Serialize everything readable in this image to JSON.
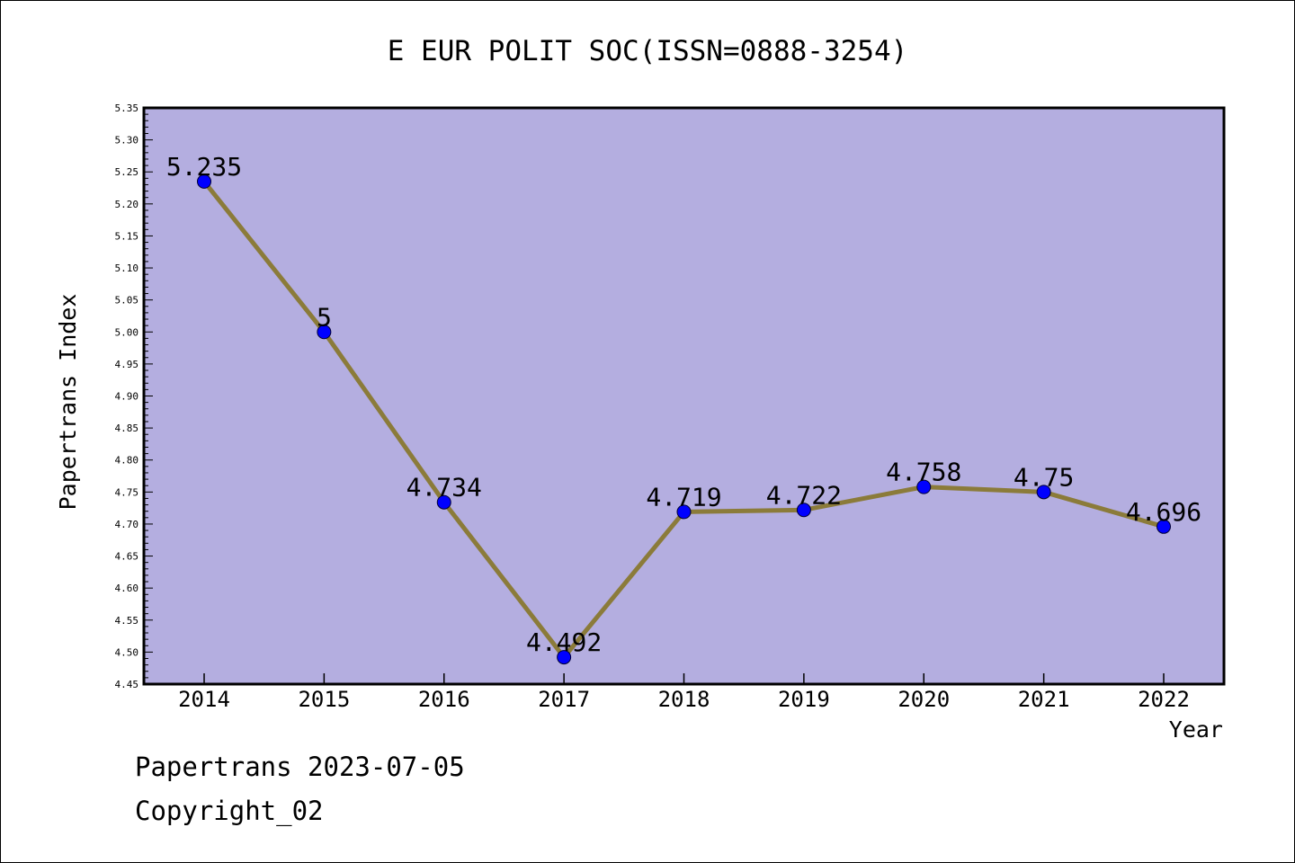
{
  "chart_data": {
    "type": "line",
    "title": "E EUR POLIT SOC(ISSN=0888-3254)",
    "xlabel": "Year",
    "ylabel": "Papertrans Index",
    "categories": [
      "2014",
      "2015",
      "2016",
      "2017",
      "2018",
      "2019",
      "2020",
      "2021",
      "2022"
    ],
    "series": [
      {
        "values": [
          5.235,
          5,
          4.734,
          4.492,
          4.719,
          4.722,
          4.758,
          4.75,
          4.696
        ],
        "labels": [
          "5.235",
          "5",
          "4.734",
          "4.492",
          "4.719",
          "4.722",
          "4.758",
          "4.75",
          "4.696"
        ]
      }
    ],
    "ylim": [
      4.45,
      5.35
    ],
    "ytick_labels": [
      "4.45",
      "4.50",
      "4.55",
      "4.60",
      "4.65",
      "4.70",
      "4.75",
      "4.80",
      "4.85",
      "4.90",
      "4.95",
      "5.00",
      "5.05",
      "5.10",
      "5.15",
      "5.20",
      "5.25",
      "5.30",
      "5.35"
    ],
    "grid": false,
    "colors": {
      "plot_background": "#b4aee0",
      "line": "#8b7b3a",
      "marker": "#0000ff"
    }
  },
  "footer": {
    "line1": "Papertrans 2023-07-05",
    "line2": "Copyright_02"
  }
}
